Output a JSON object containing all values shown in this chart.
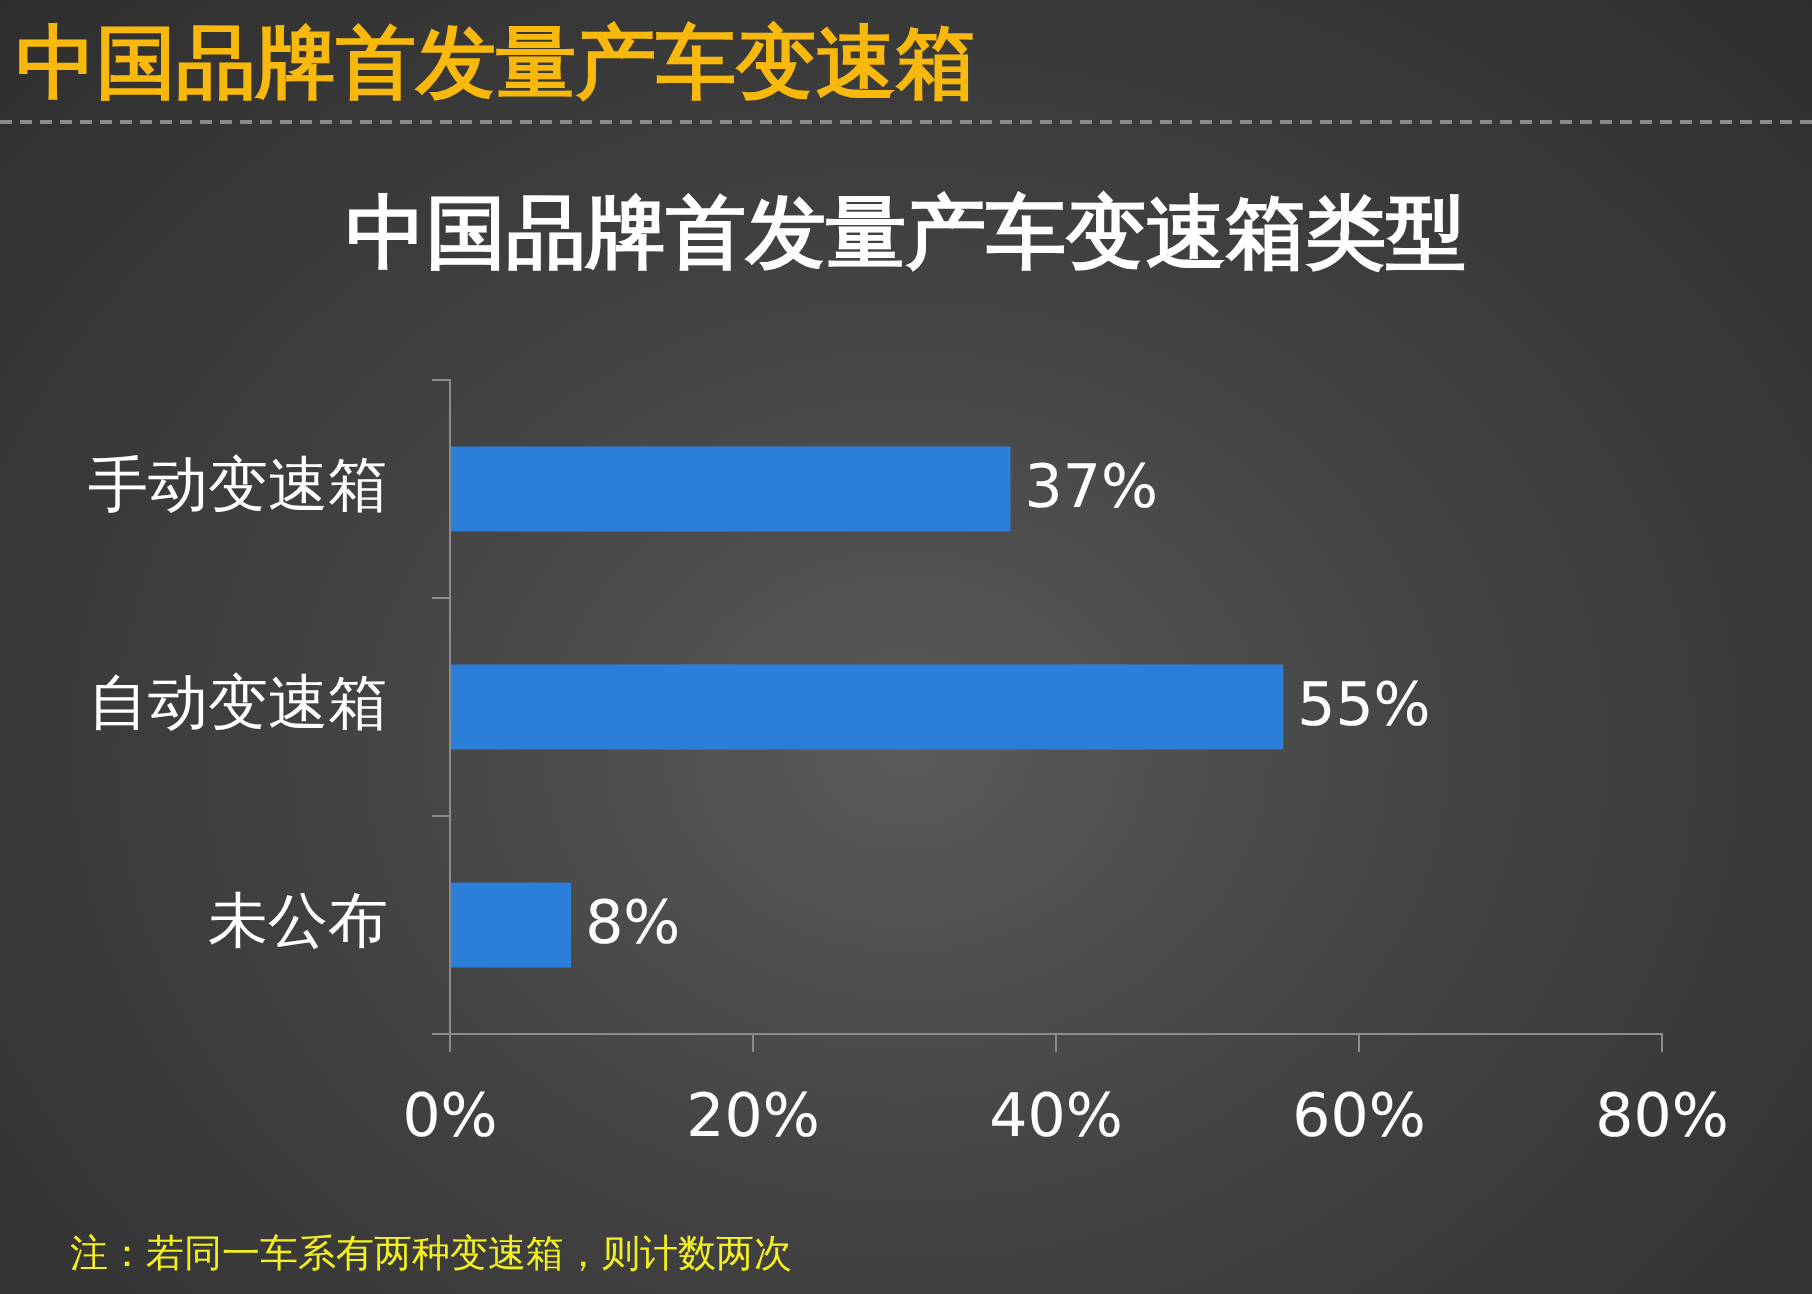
{
  "chart_data": {
    "type": "bar",
    "orientation": "horizontal",
    "title": "中国品牌首发量产车变速箱",
    "subtitle": "中国品牌首发量产车变速箱类型",
    "categories": [
      "手动变速箱",
      "自动变速箱",
      "未公布"
    ],
    "values": [
      37,
      55,
      8
    ],
    "color": "#2b7fd9",
    "value_labels": [
      "37%",
      "55%",
      "8%"
    ],
    "xlim": [
      0,
      80
    ],
    "xticks": [
      {
        "value": 0,
        "label": "0%"
      },
      {
        "value": 20,
        "label": "20%"
      },
      {
        "value": 40,
        "label": "40%"
      },
      {
        "value": 60,
        "label": "60%"
      },
      {
        "value": 80,
        "label": "80%"
      }
    ],
    "annotations": [
      "注：若同一车系有两种变速箱，则计数两次"
    ]
  }
}
